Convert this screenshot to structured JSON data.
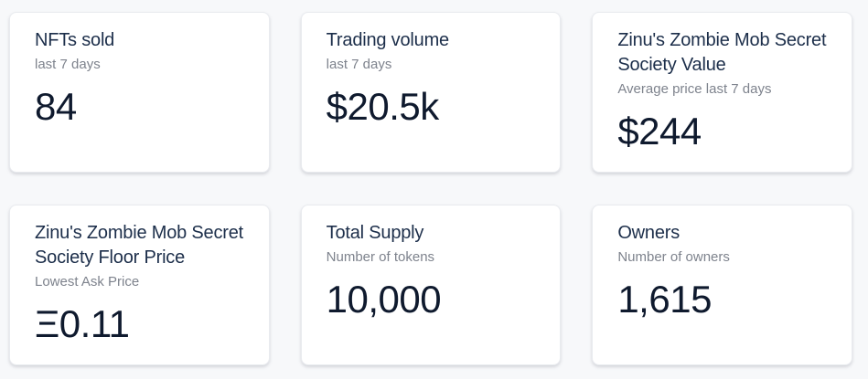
{
  "colors": {
    "page_bg": "#f7f8fa",
    "card_bg": "#ffffff",
    "card_border": "#e9ebef",
    "title": "#1c2e4a",
    "subtitle": "#7e838d",
    "value": "#0f1a2e"
  },
  "cards": [
    {
      "title": "NFTs sold",
      "subtitle": "last 7 days",
      "value": "84"
    },
    {
      "title": "Trading volume",
      "subtitle": "last 7 days",
      "value": "$20.5k"
    },
    {
      "title": "Zinu's Zombie Mob Secret Society Value",
      "subtitle": "Average price last 7 days",
      "value": "$244"
    },
    {
      "title": "Zinu's Zombie Mob Secret Society Floor Price",
      "subtitle": "Lowest Ask Price",
      "value": "Ξ0.11"
    },
    {
      "title": "Total Supply",
      "subtitle": "Number of tokens",
      "value": "10,000"
    },
    {
      "title": "Owners",
      "subtitle": "Number of owners",
      "value": "1,615"
    }
  ]
}
